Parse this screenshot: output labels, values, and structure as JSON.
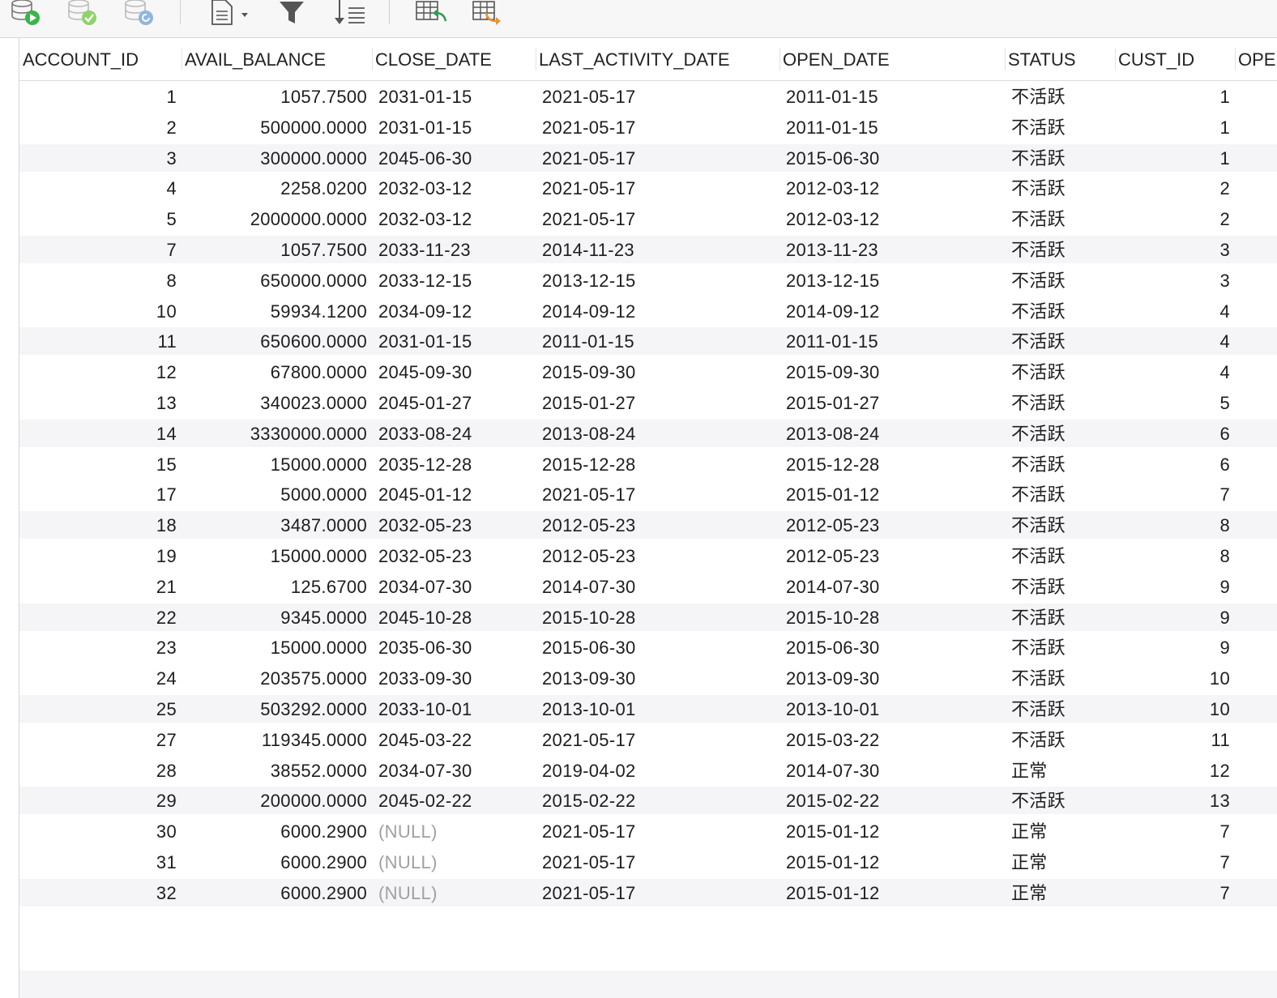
{
  "toolbar": {
    "buttons": [
      {
        "name": "run-query-button",
        "icon": "database-run-icon"
      },
      {
        "name": "commit-button",
        "icon": "database-commit-icon"
      },
      {
        "name": "rollback-button",
        "icon": "database-rollback-icon"
      },
      {
        "name": "text-view-button",
        "icon": "document-icon"
      },
      {
        "name": "filter-button",
        "icon": "filter-icon"
      },
      {
        "name": "sort-button",
        "icon": "sort-icon"
      },
      {
        "name": "import-button",
        "icon": "table-import-icon"
      },
      {
        "name": "export-button",
        "icon": "table-export-icon"
      }
    ]
  },
  "table": {
    "columns": [
      "ACCOUNT_ID",
      "AVAIL_BALANCE",
      "CLOSE_DATE",
      "LAST_ACTIVITY_DATE",
      "OPEN_DATE",
      "STATUS",
      "CUST_ID",
      "OPE"
    ],
    "rows": [
      [
        "1",
        "1057.7500",
        "2031-01-15",
        "2021-05-17",
        "2011-01-15",
        "不活跃",
        "1"
      ],
      [
        "2",
        "500000.0000",
        "2031-01-15",
        "2021-05-17",
        "2011-01-15",
        "不活跃",
        "1"
      ],
      [
        "3",
        "300000.0000",
        "2045-06-30",
        "2021-05-17",
        "2015-06-30",
        "不活跃",
        "1"
      ],
      [
        "4",
        "2258.0200",
        "2032-03-12",
        "2021-05-17",
        "2012-03-12",
        "不活跃",
        "2"
      ],
      [
        "5",
        "2000000.0000",
        "2032-03-12",
        "2021-05-17",
        "2012-03-12",
        "不活跃",
        "2"
      ],
      [
        "7",
        "1057.7500",
        "2033-11-23",
        "2014-11-23",
        "2013-11-23",
        "不活跃",
        "3"
      ],
      [
        "8",
        "650000.0000",
        "2033-12-15",
        "2013-12-15",
        "2013-12-15",
        "不活跃",
        "3"
      ],
      [
        "10",
        "59934.1200",
        "2034-09-12",
        "2014-09-12",
        "2014-09-12",
        "不活跃",
        "4"
      ],
      [
        "11",
        "650600.0000",
        "2031-01-15",
        "2011-01-15",
        "2011-01-15",
        "不活跃",
        "4"
      ],
      [
        "12",
        "67800.0000",
        "2045-09-30",
        "2015-09-30",
        "2015-09-30",
        "不活跃",
        "4"
      ],
      [
        "13",
        "340023.0000",
        "2045-01-27",
        "2015-01-27",
        "2015-01-27",
        "不活跃",
        "5"
      ],
      [
        "14",
        "3330000.0000",
        "2033-08-24",
        "2013-08-24",
        "2013-08-24",
        "不活跃",
        "6"
      ],
      [
        "15",
        "15000.0000",
        "2035-12-28",
        "2015-12-28",
        "2015-12-28",
        "不活跃",
        "6"
      ],
      [
        "17",
        "5000.0000",
        "2045-01-12",
        "2021-05-17",
        "2015-01-12",
        "不活跃",
        "7"
      ],
      [
        "18",
        "3487.0000",
        "2032-05-23",
        "2012-05-23",
        "2012-05-23",
        "不活跃",
        "8"
      ],
      [
        "19",
        "15000.0000",
        "2032-05-23",
        "2012-05-23",
        "2012-05-23",
        "不活跃",
        "8"
      ],
      [
        "21",
        "125.6700",
        "2034-07-30",
        "2014-07-30",
        "2014-07-30",
        "不活跃",
        "9"
      ],
      [
        "22",
        "9345.0000",
        "2045-10-28",
        "2015-10-28",
        "2015-10-28",
        "不活跃",
        "9"
      ],
      [
        "23",
        "15000.0000",
        "2035-06-30",
        "2015-06-30",
        "2015-06-30",
        "不活跃",
        "9"
      ],
      [
        "24",
        "203575.0000",
        "2033-09-30",
        "2013-09-30",
        "2013-09-30",
        "不活跃",
        "10"
      ],
      [
        "25",
        "503292.0000",
        "2033-10-01",
        "2013-10-01",
        "2013-10-01",
        "不活跃",
        "10"
      ],
      [
        "27",
        "119345.0000",
        "2045-03-22",
        "2021-05-17",
        "2015-03-22",
        "不活跃",
        "11"
      ],
      [
        "28",
        "38552.0000",
        "2034-07-30",
        "2019-04-02",
        "2014-07-30",
        "正常",
        "12"
      ],
      [
        "29",
        "200000.0000",
        "2045-02-22",
        "2015-02-22",
        "2015-02-22",
        "不活跃",
        "13"
      ],
      [
        "30",
        "6000.2900",
        "(NULL)",
        "2021-05-17",
        "2015-01-12",
        "正常",
        "7"
      ],
      [
        "31",
        "6000.2900",
        "(NULL)",
        "2021-05-17",
        "2015-01-12",
        "正常",
        "7"
      ],
      [
        "32",
        "6000.2900",
        "(NULL)",
        "2021-05-17",
        "2015-01-12",
        "正常",
        "7"
      ]
    ],
    "null_display": "(NULL)"
  },
  "colors": {
    "run_green": "#3bb54a",
    "commit_green": "#8fd36a",
    "rollback_blue": "#8fb6e0",
    "export_orange": "#f0922a",
    "import_green": "#2e9c52",
    "stripe": "#f5f5f7",
    "null_text": "#a0a0a0"
  }
}
